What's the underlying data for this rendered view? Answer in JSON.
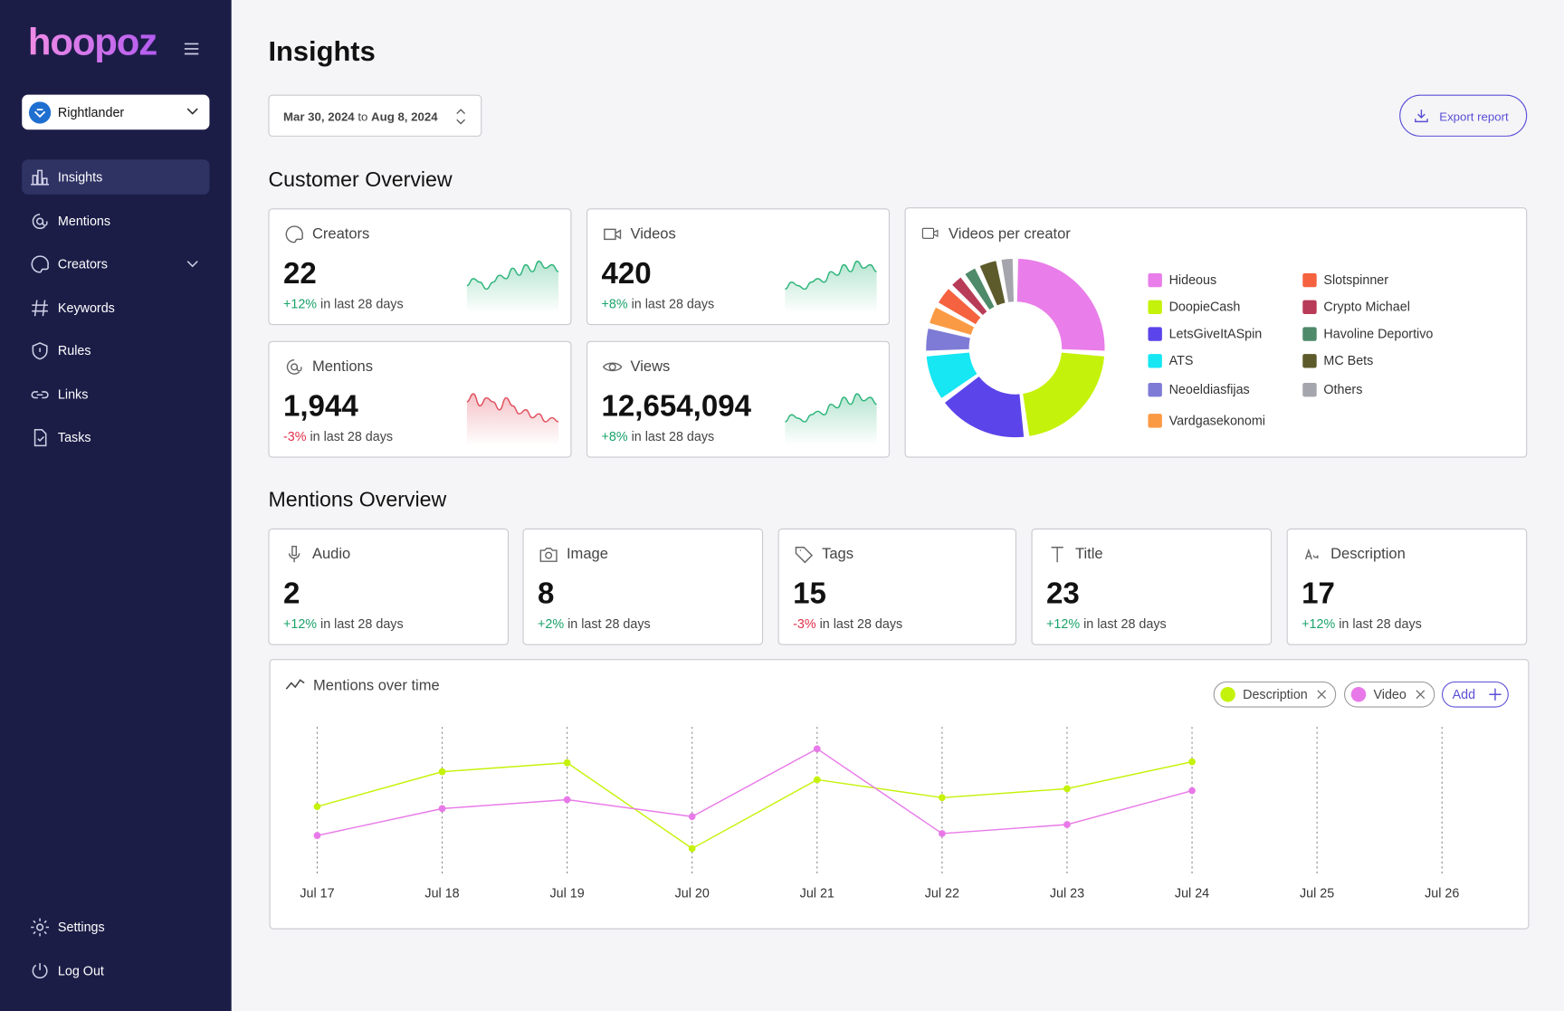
{
  "sidebar": {
    "brand": "hoopoz",
    "workspace": "Rightlander",
    "nav": [
      "Insights",
      "Mentions",
      "Creators",
      "Keywords",
      "Rules",
      "Links",
      "Tasks"
    ],
    "footer_nav": [
      "Settings",
      "Log Out"
    ]
  },
  "header": {
    "title": "Insights",
    "date_from": "Mar 30, 2024",
    "date_sep": "to",
    "date_to": "Aug 8, 2024",
    "export": "Export report"
  },
  "customer_overview": {
    "title": "Customer Overview",
    "cards": [
      {
        "label": "Creators",
        "value": "22",
        "change": "+12%",
        "period": "in last 28 days",
        "trend_color": "#2fb57c",
        "trend": [
          3,
          5,
          4,
          2,
          4,
          6,
          5,
          8,
          6,
          9,
          7,
          10,
          8,
          9,
          7
        ]
      },
      {
        "label": "Videos",
        "value": "420",
        "change": "+8%",
        "period": "in last 28 days",
        "trend_color": "#2fb57c",
        "trend": [
          2,
          4,
          3,
          2,
          4,
          5,
          4,
          7,
          6,
          9,
          7,
          10,
          8,
          9,
          7
        ]
      },
      {
        "label": "Mentions",
        "value": "1,944",
        "change": "-3%",
        "period": "in last 28 days",
        "trend_color": "#e0505e",
        "trend": [
          8,
          10,
          7,
          9,
          8,
          6,
          9,
          7,
          5,
          6,
          4,
          5,
          3,
          4,
          3
        ]
      },
      {
        "label": "Views",
        "value": "12,654,094",
        "change": "+8%",
        "period": "in last 28 days",
        "trend_color": "#2fb57c",
        "trend": [
          2,
          4,
          3,
          2,
          4,
          5,
          4,
          7,
          6,
          9,
          7,
          10,
          8,
          9,
          7
        ]
      }
    ]
  },
  "mentions_overview": {
    "title": "Mentions Overview",
    "cards": [
      {
        "label": "Audio",
        "value": "2",
        "change": "+12%",
        "period": "in last 28 days"
      },
      {
        "label": "Image",
        "value": "8",
        "change": "+2%",
        "period": "in last 28 days"
      },
      {
        "label": "Tags",
        "value": "15",
        "change": "-3%",
        "period": "in last 28 days"
      },
      {
        "label": "Title",
        "value": "23",
        "change": "+12%",
        "period": "in last 28 days"
      },
      {
        "label": "Description",
        "value": "17",
        "change": "+12%",
        "period": "in last 28 days"
      }
    ]
  },
  "chart_data": [
    {
      "type": "pie",
      "donut": true,
      "title": "Videos per creator",
      "categories": [
        "Hideous",
        "DoopieCash",
        "LetsGiveItASpin",
        "ATS",
        "Neoeldiasfijas",
        "Vardgasekonomi",
        "Slotspinner",
        "Crypto Michael",
        "Havoline Deportivo",
        "MC Bets",
        "Others"
      ],
      "values": [
        26,
        22,
        17,
        9,
        5,
        4,
        4,
        3,
        3,
        4,
        3
      ],
      "colors": [
        "#e97de9",
        "#c5f20a",
        "#5b44ea",
        "#17e6f3",
        "#7e7bd6",
        "#fb9a45",
        "#f5623f",
        "#b83b57",
        "#4f8a6b",
        "#5d5a2c",
        "#a5a5ad"
      ]
    },
    {
      "type": "line",
      "title": "Mentions over time",
      "add_label": "Add",
      "grid": "x",
      "x": [
        "Jul 17",
        "Jul 18",
        "Jul 19",
        "Jul 20",
        "Jul 21",
        "Jul 22",
        "Jul 23",
        "Jul 24",
        "Jul 25",
        "Jul 26"
      ],
      "ylim": [
        0,
        15
      ],
      "series": [
        {
          "name": "Description",
          "color": "#c5f20a",
          "values": [
            7.2,
            10.7,
            11.6,
            3.0,
            9.9,
            8.1,
            9.0,
            11.7,
            null,
            null
          ]
        },
        {
          "name": "Video",
          "color": "#e879e8",
          "values": [
            4.3,
            7.0,
            7.9,
            6.2,
            13.0,
            4.5,
            5.4,
            8.8,
            null,
            null
          ]
        }
      ]
    }
  ]
}
